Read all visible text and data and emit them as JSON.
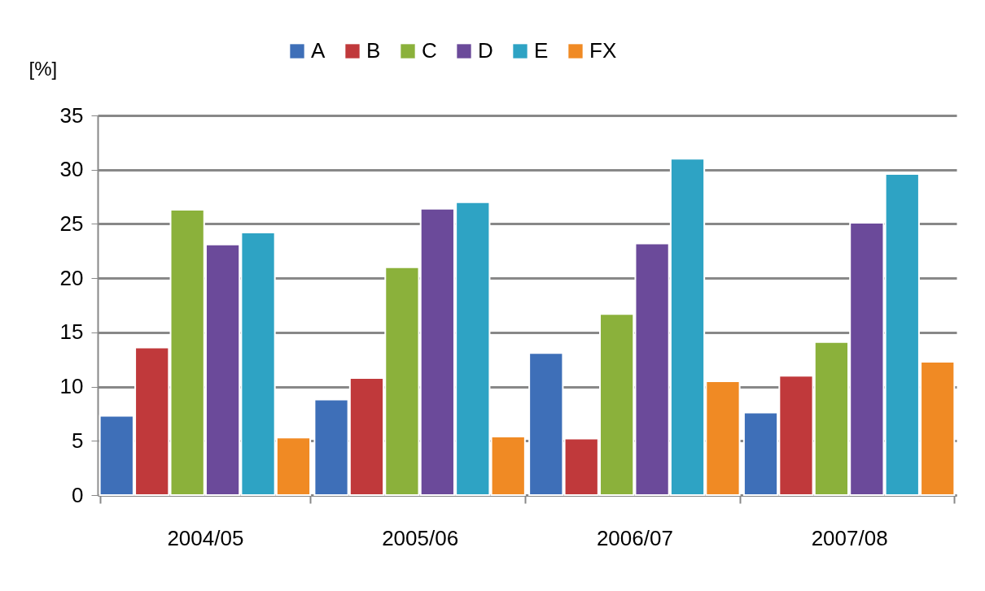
{
  "chart_data": {
    "type": "bar",
    "ylabel": "[%]",
    "categories": [
      "2004/05",
      "2005/06",
      "2006/07",
      "2007/08"
    ],
    "series": [
      {
        "name": "A",
        "color": "#3e6fb8",
        "values": [
          7.3,
          8.8,
          13.1,
          7.6
        ]
      },
      {
        "name": "B",
        "color": "#c0393b",
        "values": [
          13.6,
          10.8,
          5.2,
          11.0
        ]
      },
      {
        "name": "C",
        "color": "#8bb13b",
        "values": [
          26.3,
          21.0,
          16.7,
          14.1
        ]
      },
      {
        "name": "D",
        "color": "#6b4a9a",
        "values": [
          23.1,
          26.4,
          23.2,
          25.1
        ]
      },
      {
        "name": "E",
        "color": "#2ea3c4",
        "values": [
          24.2,
          27.0,
          31.0,
          29.6
        ]
      },
      {
        "name": "FX",
        "color": "#f08a24",
        "values": [
          5.3,
          5.4,
          10.5,
          12.3
        ]
      }
    ],
    "ylim": [
      0,
      35
    ],
    "yticks": [
      0,
      5,
      10,
      15,
      20,
      25,
      30,
      35
    ],
    "grid": "y",
    "legend": "top"
  }
}
